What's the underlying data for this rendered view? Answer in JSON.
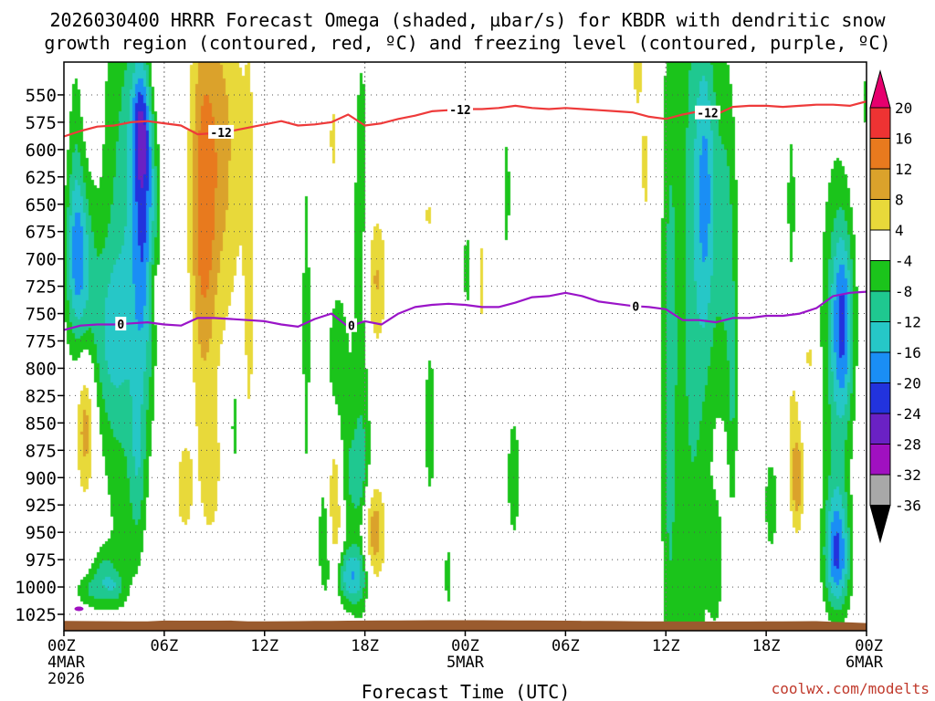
{
  "chart_data": {
    "type": "heatmap",
    "title_line1": "2026030400 HRRR Forecast Omega (shaded, µbar/s) for KBDR with dendritic snow",
    "title_line2": "growth region (contoured, red, ºC) and freezing level (contoured, purple, ºC)",
    "xlabel": "Forecast Time (UTC)",
    "credit": "coolwx.com/modelts",
    "x_range_hours": [
      0,
      48
    ],
    "y_range_hpa": [
      1040,
      520
    ],
    "x_ticks": [
      {
        "hour": 0,
        "label": "00Z",
        "date": "4MAR",
        "year": "2026"
      },
      {
        "hour": 6,
        "label": "06Z",
        "date": "",
        "year": ""
      },
      {
        "hour": 12,
        "label": "12Z",
        "date": "",
        "year": ""
      },
      {
        "hour": 18,
        "label": "18Z",
        "date": "",
        "year": ""
      },
      {
        "hour": 24,
        "label": "00Z",
        "date": "5MAR",
        "year": ""
      },
      {
        "hour": 30,
        "label": "06Z",
        "date": "",
        "year": ""
      },
      {
        "hour": 36,
        "label": "12Z",
        "date": "",
        "year": ""
      },
      {
        "hour": 42,
        "label": "18Z",
        "date": "",
        "year": ""
      },
      {
        "hour": 48,
        "label": "00Z",
        "date": "6MAR",
        "year": ""
      }
    ],
    "y_ticks": [
      "550",
      "575",
      "600",
      "625",
      "650",
      "675",
      "700",
      "725",
      "750",
      "775",
      "800",
      "825",
      "850",
      "875",
      "900",
      "925",
      "950",
      "975",
      "1000",
      "1025"
    ],
    "y_tick_values": [
      550,
      575,
      600,
      625,
      650,
      675,
      700,
      725,
      750,
      775,
      800,
      825,
      850,
      875,
      900,
      925,
      950,
      975,
      1000,
      1025
    ],
    "colorbar": {
      "labels": [
        "20",
        "16",
        "12",
        "8",
        "4",
        "-4",
        "-8",
        "-12",
        "-16",
        "-20",
        "-24",
        "-28",
        "-32",
        "-36"
      ],
      "bins": [
        {
          "lo": 20,
          "hi": 24,
          "color": "#e6006e"
        },
        {
          "lo": 16,
          "hi": 20,
          "color": "#ee3333"
        },
        {
          "lo": 12,
          "hi": 16,
          "color": "#e87a1e"
        },
        {
          "lo": 8,
          "hi": 12,
          "color": "#dba22b"
        },
        {
          "lo": 4,
          "hi": 8,
          "color": "#e8d93a"
        },
        {
          "lo": -4,
          "hi": 4,
          "color": "#ffffff"
        },
        {
          "lo": -8,
          "hi": -4,
          "color": "#1bc41b"
        },
        {
          "lo": -12,
          "hi": -8,
          "color": "#1fc890"
        },
        {
          "lo": -16,
          "hi": -12,
          "color": "#26c7c7"
        },
        {
          "lo": -20,
          "hi": -16,
          "color": "#1a8ef5"
        },
        {
          "lo": -24,
          "hi": -20,
          "color": "#2233dd"
        },
        {
          "lo": -28,
          "hi": -24,
          "color": "#6a21c4"
        },
        {
          "lo": -32,
          "hi": -28,
          "color": "#a010c0"
        },
        {
          "lo": -36,
          "hi": -32,
          "color": "#a8a8a8"
        },
        {
          "lo": -40,
          "hi": -36,
          "color": "#000000"
        }
      ]
    },
    "omega_features": [
      {
        "t": 0.9,
        "p": 702,
        "st": 0.6,
        "sp": 55,
        "v": -15
      },
      {
        "t": 0.7,
        "p": 620,
        "st": 0.35,
        "sp": 90,
        "v": -6
      },
      {
        "t": 1.3,
        "p": 852,
        "st": 0.4,
        "sp": 45,
        "v": 11
      },
      {
        "t": 1.5,
        "p": 1003,
        "st": 0.6,
        "sp": 12,
        "v": -7
      },
      {
        "t": 2.4,
        "p": 990,
        "st": 0.5,
        "sp": 18,
        "v": -8
      },
      {
        "t": 2.6,
        "p": 770,
        "st": 0.9,
        "sp": 60,
        "v": -8
      },
      {
        "t": 3.5,
        "p": 690,
        "st": 0.9,
        "sp": 220,
        "v": -9
      },
      {
        "t": 3.1,
        "p": 1000,
        "st": 0.4,
        "sp": 10,
        "v": -6
      },
      {
        "t": 4.8,
        "p": 670,
        "st": 0.55,
        "sp": 110,
        "v": -17
      },
      {
        "t": 4.6,
        "p": 580,
        "st": 0.4,
        "sp": 40,
        "v": -12
      },
      {
        "t": 4.4,
        "p": 890,
        "st": 0.35,
        "sp": 55,
        "v": -7
      },
      {
        "t": 5.3,
        "p": 730,
        "st": 0.25,
        "sp": 25,
        "v": 6
      },
      {
        "t": 5.5,
        "p": 520,
        "st": 0.5,
        "sp": 40,
        "v": 5
      },
      {
        "t": 5.9,
        "p": 810,
        "st": 0.2,
        "sp": 35,
        "v": 5
      },
      {
        "t": 7.2,
        "p": 910,
        "st": 0.4,
        "sp": 35,
        "v": 6
      },
      {
        "t": 7.5,
        "p": 765,
        "st": 0.15,
        "sp": 10,
        "v": -5
      },
      {
        "t": 8.3,
        "p": 665,
        "st": 0.55,
        "sp": 120,
        "v": 11
      },
      {
        "t": 9.4,
        "p": 600,
        "st": 1.0,
        "sp": 120,
        "v": 9
      },
      {
        "t": 8.8,
        "p": 900,
        "st": 0.5,
        "sp": 50,
        "v": 5
      },
      {
        "t": 10.2,
        "p": 850,
        "st": 0.2,
        "sp": 40,
        "v": -6
      },
      {
        "t": 11.1,
        "p": 710,
        "st": 0.25,
        "sp": 150,
        "v": 5
      },
      {
        "t": 14.3,
        "p": 550,
        "st": 0.15,
        "sp": 20,
        "v": 5
      },
      {
        "t": 14.5,
        "p": 760,
        "st": 0.2,
        "sp": 130,
        "v": -6
      },
      {
        "t": 15.6,
        "p": 955,
        "st": 0.3,
        "sp": 40,
        "v": -7
      },
      {
        "t": 16.2,
        "p": 920,
        "st": 0.3,
        "sp": 50,
        "v": 11
      },
      {
        "t": 16.1,
        "p": 590,
        "st": 0.2,
        "sp": 35,
        "v": 5
      },
      {
        "t": 16.4,
        "p": 800,
        "st": 0.5,
        "sp": 60,
        "v": -7
      },
      {
        "t": 17.2,
        "p": 990,
        "st": 0.7,
        "sp": 20,
        "v": -15
      },
      {
        "t": 17.4,
        "p": 900,
        "st": 0.7,
        "sp": 35,
        "v": -8
      },
      {
        "t": 18.5,
        "p": 950,
        "st": 0.5,
        "sp": 35,
        "v": 12
      },
      {
        "t": 17.8,
        "p": 740,
        "st": 0.4,
        "sp": 200,
        "v": -7
      },
      {
        "t": 18.6,
        "p": 720,
        "st": 0.5,
        "sp": 45,
        "v": 9
      },
      {
        "t": 21.9,
        "p": 850,
        "st": 0.25,
        "sp": 55,
        "v": -7
      },
      {
        "t": 21.8,
        "p": 660,
        "st": 0.15,
        "sp": 18,
        "v": 5
      },
      {
        "t": 23.0,
        "p": 990,
        "st": 0.2,
        "sp": 25,
        "v": -6
      },
      {
        "t": 24.1,
        "p": 710,
        "st": 0.15,
        "sp": 35,
        "v": -6
      },
      {
        "t": 25.0,
        "p": 720,
        "st": 0.12,
        "sp": 45,
        "v": 5
      },
      {
        "t": 26.5,
        "p": 640,
        "st": 0.15,
        "sp": 50,
        "v": -6
      },
      {
        "t": 26.9,
        "p": 900,
        "st": 0.3,
        "sp": 45,
        "v": -7
      },
      {
        "t": 34.8,
        "p": 620,
        "st": 0.25,
        "sp": 40,
        "v": 5
      },
      {
        "t": 34.3,
        "p": 520,
        "st": 0.3,
        "sp": 50,
        "v": 5
      },
      {
        "t": 36.2,
        "p": 820,
        "st": 0.35,
        "sp": 240,
        "v": -8
      },
      {
        "t": 37.6,
        "p": 720,
        "st": 0.8,
        "sp": 320,
        "v": -9
      },
      {
        "t": 38.4,
        "p": 640,
        "st": 0.45,
        "sp": 100,
        "v": -12
      },
      {
        "t": 39.6,
        "p": 680,
        "st": 0.5,
        "sp": 120,
        "v": -9
      },
      {
        "t": 40.0,
        "p": 830,
        "st": 0.2,
        "sp": 80,
        "v": -6
      },
      {
        "t": 39.0,
        "p": 980,
        "st": 0.3,
        "sp": 40,
        "v": -6
      },
      {
        "t": 43.5,
        "p": 650,
        "st": 0.2,
        "sp": 60,
        "v": -6
      },
      {
        "t": 42.3,
        "p": 925,
        "st": 0.35,
        "sp": 40,
        "v": -6
      },
      {
        "t": 43.6,
        "p": 860,
        "st": 0.35,
        "sp": 60,
        "v": 5
      },
      {
        "t": 43.9,
        "p": 905,
        "st": 0.25,
        "sp": 30,
        "v": 9
      },
      {
        "t": 44.6,
        "p": 790,
        "st": 0.25,
        "sp": 25,
        "v": 5
      },
      {
        "t": 45.3,
        "p": 590,
        "st": 0.25,
        "sp": 20,
        "v": 5
      },
      {
        "t": 46.2,
        "p": 770,
        "st": 0.7,
        "sp": 120,
        "v": -9
      },
      {
        "t": 46.6,
        "p": 760,
        "st": 0.45,
        "sp": 60,
        "v": -14
      },
      {
        "t": 46.2,
        "p": 955,
        "st": 0.5,
        "sp": 40,
        "v": -13
      },
      {
        "t": 46.3,
        "p": 985,
        "st": 0.6,
        "sp": 30,
        "v": -8
      },
      {
        "t": 48.0,
        "p": 555,
        "st": 0.15,
        "sp": 25,
        "v": -6
      }
    ],
    "dendritic_minus12_line": {
      "label": "-12",
      "t": [
        0,
        1,
        2,
        3,
        4,
        5,
        6,
        7,
        8,
        9,
        10,
        11,
        12,
        13,
        14,
        15,
        16,
        17,
        18,
        19,
        20,
        21,
        22,
        23,
        24,
        25,
        26,
        27,
        28,
        29,
        30,
        31,
        32,
        33,
        34,
        35,
        36,
        37,
        38,
        39,
        40,
        41,
        42,
        43,
        44,
        45,
        46,
        47,
        48
      ],
      "p": [
        588,
        583,
        579,
        578,
        575,
        574,
        576,
        578,
        586,
        585,
        583,
        580,
        577,
        574,
        578,
        577,
        575,
        568,
        578,
        576,
        572,
        569,
        565,
        564,
        563,
        563,
        562,
        560,
        562,
        563,
        562,
        563,
        564,
        565,
        566,
        570,
        572,
        568,
        565,
        568,
        561,
        560,
        560,
        561,
        560,
        559,
        559,
        560,
        556
      ]
    },
    "freezing_0_line": {
      "label": "0",
      "t": [
        0,
        1,
        2,
        3,
        4,
        5,
        6,
        7,
        8,
        9,
        10,
        11,
        12,
        13,
        14,
        15,
        16,
        17,
        18,
        19,
        20,
        21,
        22,
        23,
        24,
        25,
        26,
        27,
        28,
        29,
        30,
        31,
        32,
        33,
        34,
        35,
        36,
        37,
        38,
        39,
        40,
        41,
        42,
        43,
        44,
        45,
        46,
        47,
        48
      ],
      "p": [
        765,
        761,
        760,
        760,
        759,
        758,
        760,
        761,
        754,
        754,
        755,
        756,
        757,
        760,
        762,
        755,
        750,
        762,
        757,
        760,
        750,
        744,
        742,
        741,
        742,
        744,
        744,
        740,
        735,
        734,
        731,
        734,
        739,
        741,
        743,
        744,
        746,
        756,
        756,
        758,
        754,
        754,
        752,
        752,
        750,
        745,
        734,
        731,
        730
      ]
    },
    "label_positions": [
      {
        "line": "minus12",
        "t": 9.4
      },
      {
        "line": "minus12",
        "t": 23.7
      },
      {
        "line": "minus12",
        "t": 38.5
      },
      {
        "line": "zero",
        "t": 3.4
      },
      {
        "line": "zero",
        "t": 17.2
      },
      {
        "line": "zero",
        "t": 34.2
      }
    ],
    "terrain": {
      "label": "surface",
      "color": "#9a5b2e"
    },
    "small_feature": {
      "t": 0.9,
      "p": 1020,
      "color": "#a010c0"
    }
  }
}
